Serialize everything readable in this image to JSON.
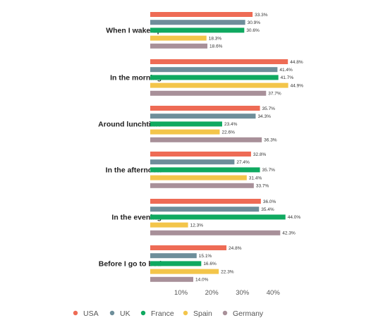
{
  "chart_data": {
    "type": "bar",
    "orientation": "horizontal",
    "categories": [
      "When I wake up",
      "In the morning",
      "Around lunchtime",
      "In the afternoon",
      "In the evening",
      "Before I go to bed"
    ],
    "series": [
      {
        "name": "USA",
        "color": "#ee6b55",
        "values": [
          33.3,
          44.8,
          35.7,
          32.8,
          36.0,
          24.8
        ]
      },
      {
        "name": "UK",
        "color": "#6e8e9a",
        "values": [
          30.9,
          41.4,
          34.3,
          27.4,
          35.4,
          15.1
        ]
      },
      {
        "name": "France",
        "color": "#0fa960",
        "values": [
          30.6,
          41.7,
          23.4,
          35.7,
          44.0,
          16.6
        ]
      },
      {
        "name": "Spain",
        "color": "#f3c54a",
        "values": [
          18.3,
          44.9,
          22.6,
          31.4,
          12.3,
          22.3
        ]
      },
      {
        "name": "Germany",
        "color": "#a89099",
        "values": [
          18.6,
          37.7,
          36.3,
          33.7,
          42.3,
          14.0
        ]
      }
    ],
    "value_labels": [
      [
        "33.3%",
        "30.9%",
        "30.6%",
        "18.3%",
        "18.6%"
      ],
      [
        "44.8%",
        "41.4%",
        "41.7%",
        "44.9%",
        "37.7%"
      ],
      [
        "35.7%",
        "34.3%",
        "23.4%",
        "22.6%",
        "36.3%"
      ],
      [
        "32.8%",
        "27.4%",
        "35.7%",
        "31.4%",
        "33.7%"
      ],
      [
        "36.0%",
        "35.4%",
        "44.0%",
        "12.3%",
        "42.3%"
      ],
      [
        "24.8%",
        "15.1%",
        "16.6%",
        "22.3%",
        "14.0%"
      ]
    ],
    "x_ticks": [
      10,
      20,
      30,
      40
    ],
    "x_tick_labels": [
      "10%",
      "20%",
      "30%",
      "40%"
    ],
    "xlim": [
      0,
      45
    ],
    "grid": false,
    "legend_position": "bottom"
  }
}
